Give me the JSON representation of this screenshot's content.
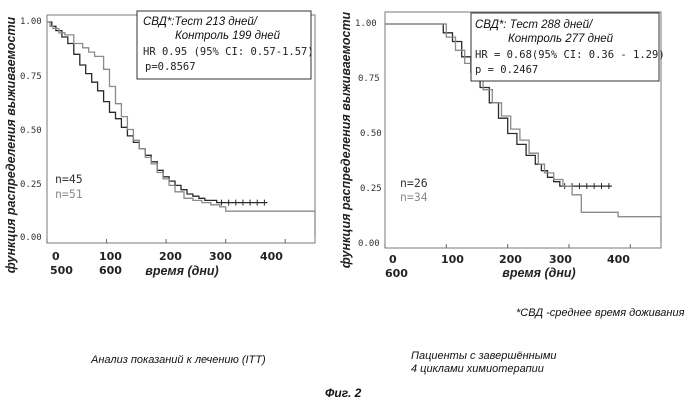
{
  "chart_data": [
    {
      "type": "line",
      "title": "",
      "ylabel": "функция распределения выживаемости",
      "xlabel": "время (дни)",
      "ylim": [
        0,
        1
      ],
      "xlim": [
        0,
        450
      ],
      "yticks": [
        "1.00",
        "0.75",
        "0.50",
        "0.25",
        "0.00"
      ],
      "xticks": [
        "0",
        "100",
        "200",
        "300",
        "400"
      ],
      "xticks_second_row": [
        "500",
        "600"
      ],
      "annotation": {
        "line1": "СВД*:Тест 213 дней/",
        "line2": "Контроль 199 дней",
        "line3": "HR 0.95 (95% CI: 0.57-1.57)",
        "line4": "p=0.8567"
      },
      "n_labels": [
        "n=45",
        "n=51"
      ],
      "series": [
        {
          "color": "#2a2a2a",
          "x": [
            0,
            8,
            15,
            25,
            35,
            45,
            55,
            65,
            75,
            85,
            95,
            105,
            115,
            125,
            135,
            145,
            155,
            165,
            175,
            185,
            195,
            205,
            215,
            225,
            235,
            245,
            255,
            265,
            275,
            285,
            370
          ],
          "y": [
            1.0,
            0.98,
            0.96,
            0.93,
            0.9,
            0.85,
            0.8,
            0.76,
            0.72,
            0.68,
            0.63,
            0.58,
            0.55,
            0.51,
            0.47,
            0.44,
            0.41,
            0.38,
            0.35,
            0.31,
            0.28,
            0.26,
            0.24,
            0.22,
            0.2,
            0.19,
            0.18,
            0.17,
            0.17,
            0.16,
            0.16
          ]
        },
        {
          "color": "#8a8a8a",
          "x": [
            0,
            5,
            10,
            20,
            30,
            45,
            60,
            70,
            80,
            95,
            105,
            115,
            125,
            135,
            145,
            155,
            165,
            175,
            185,
            195,
            205,
            215,
            230,
            245,
            260,
            275,
            290,
            300,
            370,
            420,
            450,
            450
          ],
          "y": [
            1.0,
            0.98,
            0.97,
            0.95,
            0.94,
            0.9,
            0.88,
            0.86,
            0.84,
            0.78,
            0.7,
            0.62,
            0.56,
            0.5,
            0.45,
            0.41,
            0.37,
            0.34,
            0.3,
            0.27,
            0.24,
            0.21,
            0.18,
            0.17,
            0.16,
            0.15,
            0.14,
            0.12,
            0.12,
            0.12,
            0.12,
            0.0
          ]
        }
      ]
    },
    {
      "type": "line",
      "title": "",
      "ylabel": "функция распределения выживаемости",
      "xlabel": "время (дни)",
      "ylim": [
        0,
        1
      ],
      "xlim": [
        0,
        450
      ],
      "yticks": [
        "1.00",
        "0.75",
        "0.50",
        "0.25",
        "0.00"
      ],
      "xticks": [
        "0",
        "100",
        "200",
        "300",
        "400"
      ],
      "xticks_second_row": [
        "600"
      ],
      "annotation": {
        "line1": "СВД*: Тест 288 дней/",
        "line2": "Контроль 277 дней",
        "line3": "HR = 0.68(95% CI: 0.36 - 1.29)",
        "line4": "p = 0.2467"
      },
      "n_labels": [
        "n=26",
        "n=34"
      ],
      "series": [
        {
          "color": "#2a2a2a",
          "x": [
            0,
            85,
            95,
            110,
            125,
            140,
            155,
            170,
            185,
            200,
            215,
            230,
            245,
            255,
            265,
            275,
            285,
            370
          ],
          "y": [
            1.0,
            1.0,
            0.96,
            0.92,
            0.85,
            0.78,
            0.71,
            0.64,
            0.57,
            0.5,
            0.45,
            0.4,
            0.36,
            0.33,
            0.3,
            0.28,
            0.26,
            0.26
          ]
        },
        {
          "color": "#8a8a8a",
          "x": [
            0,
            85,
            100,
            115,
            130,
            145,
            160,
            175,
            190,
            205,
            220,
            235,
            250,
            260,
            275,
            290,
            305,
            320,
            380,
            420,
            450,
            450
          ],
          "y": [
            1.0,
            1.0,
            0.94,
            0.88,
            0.82,
            0.75,
            0.7,
            0.64,
            0.58,
            0.52,
            0.47,
            0.41,
            0.36,
            0.32,
            0.29,
            0.26,
            0.22,
            0.14,
            0.12,
            0.12,
            0.12,
            0.0
          ]
        }
      ]
    }
  ],
  "footnote": "*СВД -среднее время доживания",
  "caption_left": "Анализ показаний к лечению (ITT)",
  "caption_right_line1": "Пациенты с завершёнными",
  "caption_right_line2": "4 циклами химиотерапии",
  "figure_label": "Фиг. 2"
}
